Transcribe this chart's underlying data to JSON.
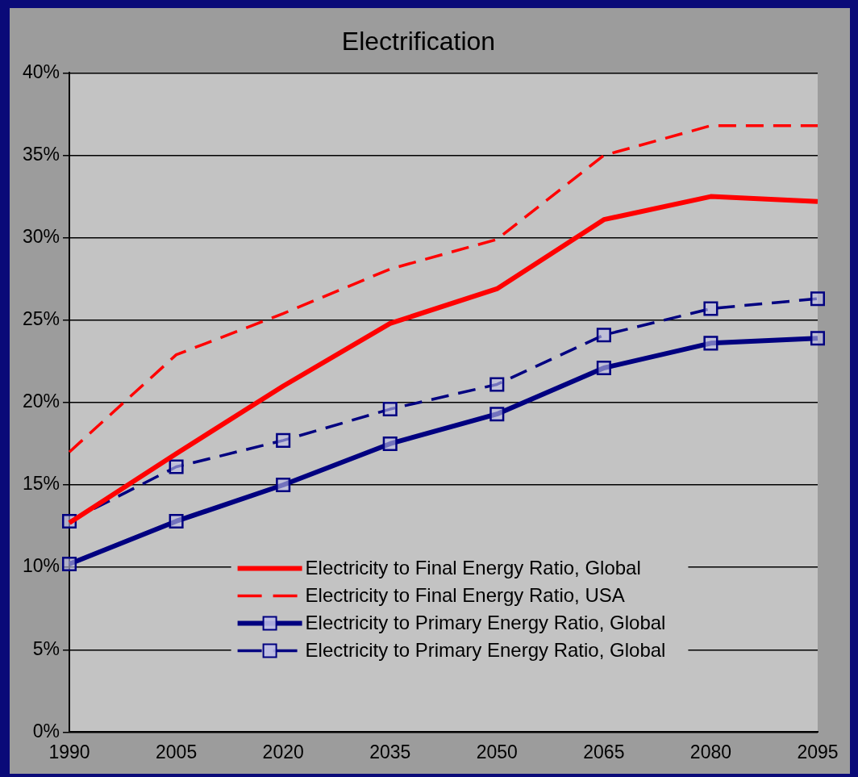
{
  "chart_data": {
    "type": "line",
    "title": "Electrification",
    "categories": [
      "1990",
      "2005",
      "2020",
      "2035",
      "2050",
      "2065",
      "2080",
      "2095"
    ],
    "ylim": [
      0,
      40
    ],
    "yticks": [
      {
        "value": 0,
        "label": "0%"
      },
      {
        "value": 5,
        "label": "5%"
      },
      {
        "value": 10,
        "label": "10%"
      },
      {
        "value": 15,
        "label": "15%"
      },
      {
        "value": 20,
        "label": "20%"
      },
      {
        "value": 25,
        "label": "25%"
      },
      {
        "value": 30,
        "label": "30%"
      },
      {
        "value": 35,
        "label": "35%"
      },
      {
        "value": 40,
        "label": "40%"
      }
    ],
    "grid": "y",
    "legend": "bottom",
    "series": [
      {
        "name": "Electricity to Final Energy Ratio, Global",
        "color": "#ff0000",
        "line_style": "solid",
        "marker": "none",
        "values": [
          12.7,
          16.9,
          21.0,
          24.8,
          26.9,
          31.1,
          32.5,
          32.2
        ]
      },
      {
        "name": "Electricity to Final Energy Ratio, USA",
        "color": "#ff0000",
        "line_style": "dashed",
        "marker": "none",
        "values": [
          17.0,
          22.9,
          25.4,
          28.1,
          29.9,
          35.0,
          36.8,
          36.8
        ]
      },
      {
        "name": "Electricity to Primary Energy Ratio, Global",
        "color": "#000080",
        "line_style": "solid",
        "marker": "square",
        "values": [
          10.2,
          12.8,
          15.0,
          17.5,
          19.3,
          22.1,
          23.6,
          23.9
        ]
      },
      {
        "name": "Electricity to Primary Energy Ratio, Global",
        "color": "#000080",
        "line_style": "dashed",
        "marker": "square",
        "values": [
          12.8,
          16.1,
          17.7,
          19.6,
          21.1,
          24.1,
          25.7,
          26.3
        ]
      }
    ]
  }
}
